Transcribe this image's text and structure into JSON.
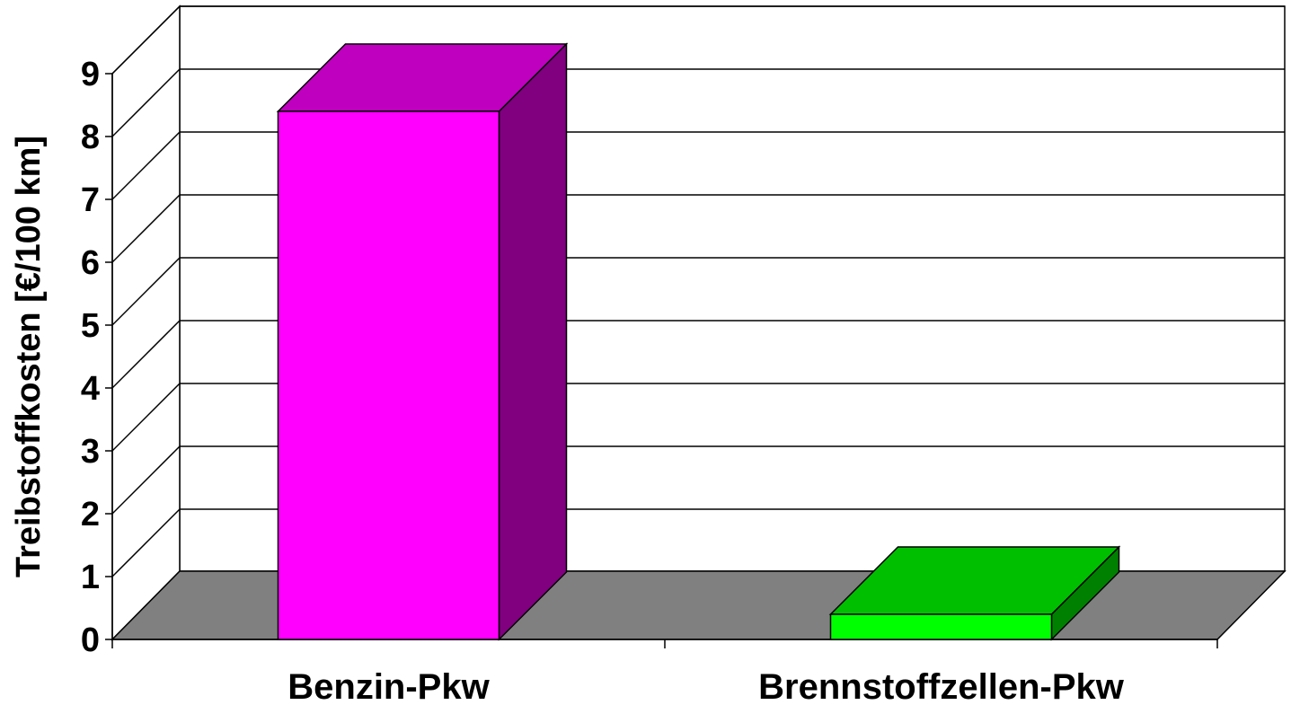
{
  "chart_data": {
    "type": "bar3d",
    "y_label": "Treibstoffkosten [€/100 km]",
    "categories": [
      "Benzin-Pkw",
      "Brennstoffzellen-Pkw"
    ],
    "values": [
      8.4,
      0.4
    ],
    "colors": [
      "#ff00ff",
      "#00ff00"
    ],
    "ylim": [
      0,
      9
    ],
    "yticks": [
      0,
      1,
      2,
      3,
      4,
      5,
      6,
      7,
      8,
      9
    ],
    "grid": true
  }
}
